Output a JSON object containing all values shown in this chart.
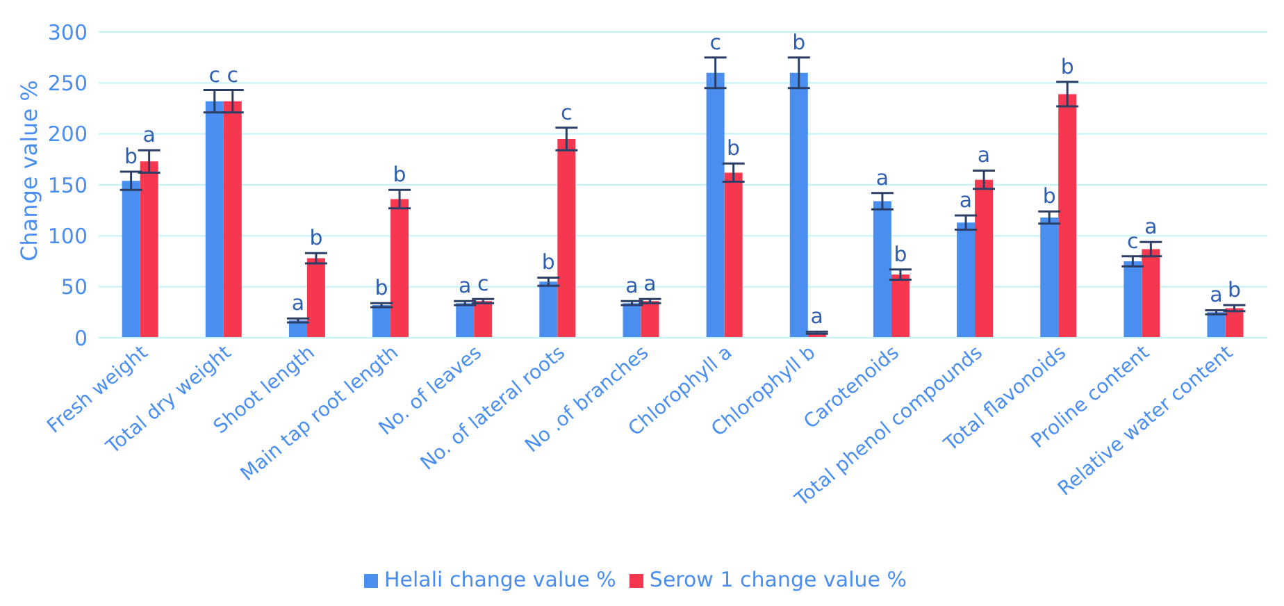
{
  "chart_data": {
    "type": "bar",
    "ylabel": "Change value %",
    "categories": [
      "Fresh weight",
      "Total dry weight",
      "Shoot length",
      "Main tap root length",
      "No. of leaves",
      "No. of lateral roots",
      "No .of branches",
      "Chlorophyll a",
      "Chlorophyll b",
      "Carotenoids",
      "Total phenol compounds",
      "Total flavonoids",
      "Proline content",
      "Relative water content"
    ],
    "series": [
      {
        "name": "Helali change value %",
        "color": "#4a8ef0",
        "values": [
          154,
          232,
          17,
          32,
          34,
          55,
          34,
          260,
          260,
          134,
          113,
          118,
          75,
          25
        ],
        "errors": [
          9,
          11,
          2,
          2,
          2,
          4,
          2,
          15,
          15,
          8,
          7,
          6,
          5,
          2
        ],
        "value_labels": [
          "b",
          "c",
          "a",
          "b",
          "a",
          "b",
          "a",
          "c",
          "b",
          "a",
          "a",
          "b",
          "c",
          "a"
        ]
      },
      {
        "name": "Serow 1 change value %",
        "color": "#f5384f",
        "values": [
          173,
          232,
          78,
          136,
          36,
          195,
          36,
          162,
          5,
          62,
          155,
          239,
          87,
          29
        ],
        "errors": [
          11,
          11,
          5,
          9,
          2,
          11,
          2,
          9,
          1,
          5,
          9,
          12,
          7,
          3
        ],
        "value_labels": [
          "a",
          "c",
          "b",
          "b",
          "c",
          "c",
          "a",
          "b",
          "a",
          "b",
          "a",
          "b",
          "a",
          "b"
        ]
      }
    ],
    "ylim": [
      0,
      300
    ],
    "yticks": [
      0,
      50,
      100,
      150,
      200,
      250,
      300
    ],
    "grid": "y",
    "legend": "bottom"
  }
}
